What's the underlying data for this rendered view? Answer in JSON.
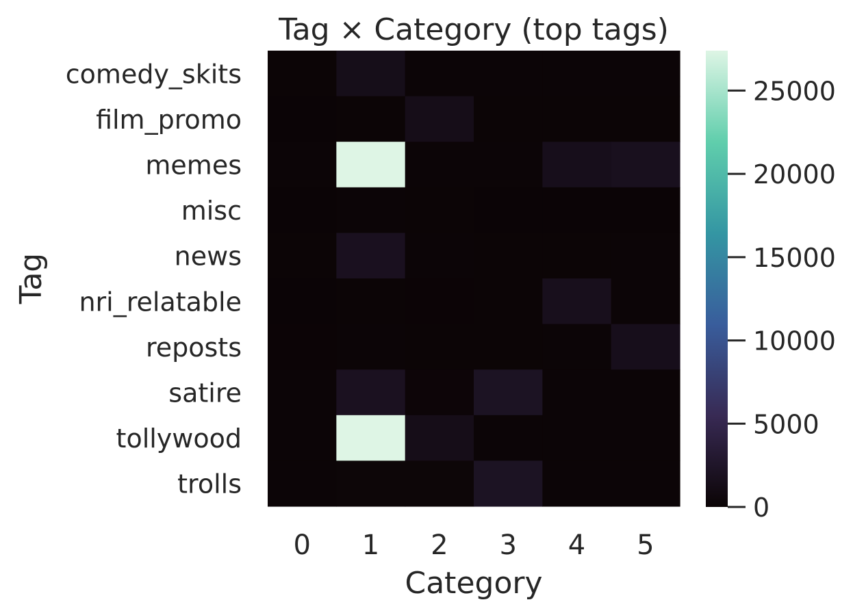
{
  "chart_data": {
    "type": "heatmap",
    "title": "Tag × Category (top tags)",
    "xlabel": "Category",
    "ylabel": "Tag",
    "x_categories": [
      "0",
      "1",
      "2",
      "3",
      "4",
      "5"
    ],
    "y_categories": [
      "comedy_skits",
      "film_promo",
      "memes",
      "misc",
      "news",
      "nri_relatable",
      "reposts",
      "satire",
      "tollywood",
      "trolls"
    ],
    "values": [
      [
        80,
        1400,
        150,
        120,
        110,
        130
      ],
      [
        60,
        100,
        1300,
        90,
        80,
        100
      ],
      [
        150,
        27400,
        120,
        110,
        1500,
        1700
      ],
      [
        40,
        110,
        90,
        50,
        40,
        60
      ],
      [
        100,
        1800,
        130,
        100,
        100,
        140
      ],
      [
        50,
        90,
        70,
        90,
        1600,
        150
      ],
      [
        70,
        130,
        90,
        80,
        140,
        1500
      ],
      [
        120,
        1900,
        200,
        2100,
        120,
        130
      ],
      [
        150,
        27400,
        1300,
        160,
        130,
        120
      ],
      [
        110,
        220,
        230,
        2100,
        120,
        120
      ]
    ],
    "colorbar": {
      "min": 0,
      "max": 27400,
      "ticks": [
        0,
        5000,
        10000,
        15000,
        20000,
        25000
      ],
      "colormap": "mako",
      "color_stops": [
        "#0b0405",
        "#382a54",
        "#395d9c",
        "#3496a3",
        "#60ceac",
        "#def5e5"
      ]
    },
    "grid": false,
    "legend": "none"
  }
}
